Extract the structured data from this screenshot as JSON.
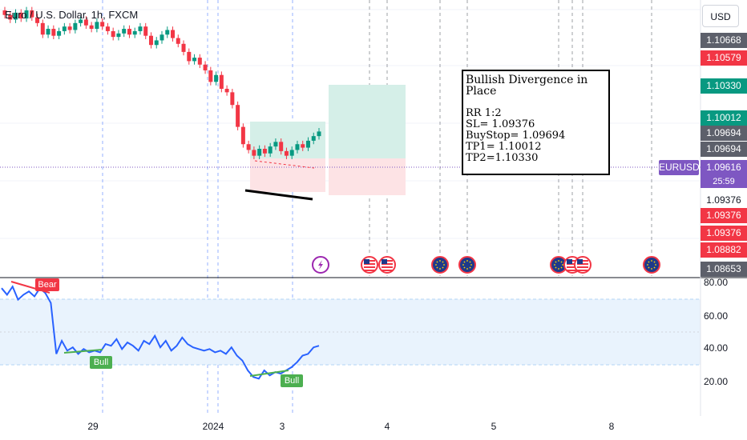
{
  "header": {
    "title": "Euro / U.S. Dollar, 1h, FXCM",
    "currency_button": "USD"
  },
  "price_labels": [
    {
      "text": "1.10668",
      "style": "dark"
    },
    {
      "text": "1.10579",
      "style": "red"
    },
    {
      "text": "1.10330",
      "style": "green"
    },
    {
      "text": "1.10012",
      "style": "green"
    },
    {
      "text": "1.09694",
      "style": "dark"
    },
    {
      "text": "1.09694",
      "style": "dark"
    },
    {
      "text": "1.09616",
      "style": "purple"
    },
    {
      "text": "1.09376",
      "style": "plain"
    },
    {
      "text": "1.09376",
      "style": "red"
    },
    {
      "text": "1.09376",
      "style": "red"
    },
    {
      "text": "1.08882",
      "style": "red"
    },
    {
      "text": "1.08653",
      "style": "dark"
    }
  ],
  "symbol_tag": "EURUSD",
  "countdown": "25:59",
  "annotation": {
    "heading": "Bullish Divergence in Place",
    "lines": [
      "RR 1:2",
      "SL= 1.09376",
      "BuyStop= 1.09694",
      "TP1= 1.10012",
      "TP2=1.10330"
    ]
  },
  "rsi_axis": [
    "80.00",
    "60.00",
    "40.00",
    "20.00"
  ],
  "x_axis": [
    "29",
    "2024",
    "3",
    "4",
    "5",
    "8"
  ],
  "divergence_tags": {
    "bear": "Bear",
    "bull1": "Bull",
    "bull2": "Bull"
  },
  "event_icons": [
    "lightning-event",
    "us-flag",
    "us-flag",
    "eu-flag",
    "eu-flag",
    "eu-flag",
    "us-flag",
    "us-flag",
    "eu-flag"
  ],
  "colors": {
    "up": "#089981",
    "down": "#f23645",
    "rsi": "#2962ff",
    "accent": "#7e57c2"
  },
  "chart_data": [
    {
      "type": "candlestick",
      "title": "Euro / U.S. Dollar, 1h, FXCM",
      "ylabel": "USD",
      "ylim": [
        1.086,
        1.1075
      ],
      "levels": {
        "stop_loss": 1.09376,
        "buy_stop": 1.09694,
        "tp1": 1.10012,
        "tp2": 1.1033,
        "last": 1.09616
      },
      "closes": [
        1.1062,
        1.1058,
        1.1064,
        1.1059,
        1.1066,
        1.106,
        1.1055,
        1.1045,
        1.105,
        1.1044,
        1.1048,
        1.1052,
        1.1049,
        1.1055,
        1.1058,
        1.1053,
        1.105,
        1.1056,
        1.1052,
        1.1048,
        1.1043,
        1.1046,
        1.105,
        1.1045,
        1.1048,
        1.1052,
        1.1044,
        1.1036,
        1.104,
        1.1045,
        1.1049,
        1.1042,
        1.1037,
        1.103,
        1.1022,
        1.1025,
        1.1019,
        1.1014,
        1.1004,
        1.101,
        1.0998,
        1.0995,
        1.0984,
        1.0965,
        1.095,
        1.0945,
        1.094,
        1.0946,
        1.0942,
        1.0948,
        1.0952,
        1.0944,
        1.094,
        1.0945,
        1.095,
        1.0947,
        1.0953,
        1.0957,
        1.0961
      ]
    },
    {
      "type": "line",
      "title": "RSI",
      "ylim": [
        10,
        82
      ],
      "bands": [
        30,
        70
      ],
      "series": [
        {
          "name": "",
          "values": [
            78,
            74,
            79,
            71,
            74,
            76,
            73,
            78,
            75,
            69,
            38,
            46,
            40,
            42,
            38,
            41,
            39,
            40,
            39,
            44,
            43,
            47,
            41,
            45,
            43,
            40,
            46,
            44,
            49,
            42,
            46,
            40,
            43,
            48,
            44,
            42,
            41,
            40,
            41,
            39,
            40,
            38,
            42,
            37,
            34,
            28,
            24,
            23,
            28,
            25,
            27,
            26,
            28,
            30,
            33,
            37,
            38,
            42,
            43
          ]
        }
      ]
    }
  ]
}
